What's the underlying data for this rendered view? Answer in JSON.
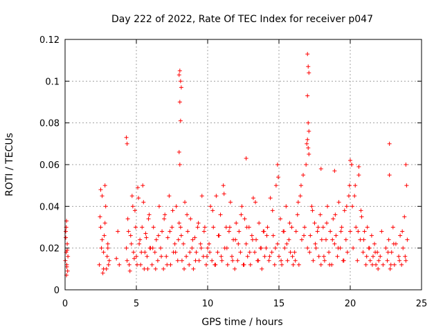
{
  "chart_data": {
    "type": "scatter",
    "title": "Day 222 of 2022, Rate Of TEC Index for receiver p047",
    "xlabel": "GPS time / hours",
    "ylabel": "ROTI / TECUs",
    "xlim": [
      0,
      25
    ],
    "ylim": [
      0,
      0.12
    ],
    "xticks": [
      "0",
      "5",
      "10",
      "15",
      "20",
      "25"
    ],
    "yticks": [
      "0",
      "0.02",
      "0.04",
      "0.06",
      "0.08",
      "0.1",
      "0.12"
    ],
    "xtick_values": [
      0,
      5,
      10,
      15,
      20,
      25
    ],
    "ytick_values": [
      0,
      0.02,
      0.04,
      0.06,
      0.08,
      0.1,
      0.12
    ],
    "grid": true,
    "marker": "plus",
    "color": "#ff0000",
    "series": [
      {
        "x": [
          0.02,
          0.05,
          0.08,
          0.1,
          0.12,
          0.15,
          0.18,
          0.2,
          0.05,
          0.1,
          0.15,
          0.08,
          0.12,
          2.4,
          2.5,
          2.6,
          2.7,
          2.8,
          2.9,
          3.0,
          3.1,
          2.45,
          2.55,
          2.65,
          2.75,
          2.85,
          2.95,
          3.05,
          2.5,
          2.6,
          2.7,
          2.8,
          3.0,
          3.6,
          3.7,
          3.8,
          4.3,
          4.4,
          4.5,
          4.6,
          4.7,
          4.8,
          4.9,
          5.0,
          5.1,
          5.2,
          5.3,
          5.4,
          5.5,
          5.6,
          5.7,
          5.8,
          5.9,
          6.0,
          4.35,
          4.45,
          4.55,
          4.65,
          4.75,
          4.85,
          4.95,
          5.05,
          5.15,
          5.25,
          5.35,
          5.45,
          5.55,
          5.65,
          5.75,
          5.85,
          5.95,
          6.1,
          6.2,
          6.3,
          6.4,
          6.5,
          6.6,
          6.7,
          6.8,
          6.9,
          7.0,
          7.1,
          7.2,
          7.3,
          7.4,
          7.5,
          7.6,
          7.7,
          7.8,
          7.9,
          8.0,
          6.15,
          6.35,
          6.55,
          6.75,
          6.95,
          7.15,
          7.35,
          7.55,
          7.75,
          7.95,
          8.1,
          8.2,
          8.3,
          8.4,
          8.5,
          8.6,
          8.7,
          8.8,
          8.9,
          9.0,
          9.1,
          9.2,
          9.3,
          9.4,
          9.5,
          9.6,
          9.7,
          9.8,
          9.9,
          10.0,
          8.15,
          8.35,
          8.55,
          8.75,
          8.95,
          9.15,
          9.35,
          9.55,
          9.75,
          9.95,
          10.1,
          10.2,
          10.3,
          10.4,
          10.5,
          10.6,
          10.7,
          10.8,
          10.9,
          11.0,
          11.1,
          11.2,
          11.3,
          11.4,
          11.5,
          11.6,
          11.7,
          11.8,
          11.9,
          12.0,
          10.15,
          10.35,
          10.55,
          10.75,
          10.95,
          11.15,
          11.35,
          11.55,
          11.75,
          11.95,
          12.1,
          12.2,
          12.3,
          12.4,
          12.5,
          12.6,
          12.7,
          12.8,
          12.9,
          13.0,
          13.1,
          13.2,
          13.3,
          13.4,
          13.5,
          13.6,
          13.7,
          13.8,
          13.9,
          14.0,
          12.15,
          12.35,
          12.55,
          12.75,
          12.95,
          13.15,
          13.35,
          13.55,
          13.75,
          13.95,
          14.1,
          14.2,
          14.3,
          14.4,
          14.5,
          14.6,
          14.7,
          14.8,
          14.9,
          15.0,
          15.1,
          15.2,
          15.3,
          15.4,
          15.5,
          15.6,
          15.7,
          15.8,
          15.9,
          16.0,
          14.15,
          14.35,
          14.55,
          14.75,
          14.95,
          15.15,
          15.35,
          15.55,
          15.75,
          15.95,
          16.1,
          16.2,
          16.3,
          16.4,
          16.5,
          16.6,
          16.7,
          16.8,
          16.9,
          17.0,
          17.1,
          17.2,
          17.3,
          17.4,
          17.5,
          17.6,
          17.7,
          17.8,
          17.9,
          18.0,
          16.15,
          16.35,
          16.55,
          16.75,
          16.95,
          17.15,
          17.35,
          17.55,
          17.75,
          17.95,
          18.1,
          18.2,
          18.3,
          18.4,
          18.5,
          18.6,
          18.7,
          18.8,
          18.9,
          19.0,
          19.1,
          19.2,
          19.3,
          19.4,
          19.5,
          19.6,
          19.7,
          19.8,
          19.9,
          20.0,
          18.15,
          18.35,
          18.55,
          18.75,
          18.95,
          19.15,
          19.35,
          19.55,
          19.75,
          19.95,
          20.1,
          20.2,
          20.3,
          20.4,
          20.5,
          20.6,
          20.7,
          20.8,
          20.9,
          21.0,
          21.1,
          21.2,
          21.3,
          21.4,
          21.5,
          21.6,
          21.7,
          21.8,
          21.9,
          22.0,
          20.15,
          20.35,
          20.55,
          20.75,
          20.95,
          21.15,
          21.35,
          21.55,
          21.75,
          21.95,
          22.1,
          22.2,
          22.3,
          22.5,
          22.6,
          22.7,
          22.8,
          22.9,
          23.0,
          23.1,
          23.2,
          23.4,
          23.5,
          23.6,
          23.7,
          23.8,
          23.9,
          24.0,
          22.65,
          22.85,
          23.05,
          23.45,
          23.65,
          23.85,
          4.3,
          4.35,
          8.0,
          8.05,
          8.1,
          8.15,
          8.05,
          8.1,
          8.0,
          8.05,
          17.0,
          17.05,
          17.1,
          17.0,
          17.05,
          17.1,
          17.0,
          17.05,
          22.75,
          12.7,
          14.9,
          17.95,
          18.9,
          20.0,
          20.1,
          20.6,
          22.75,
          23.9,
          23.95
        ],
        "y": [
          0.014,
          0.028,
          0.018,
          0.033,
          0.012,
          0.022,
          0.009,
          0.016,
          0.025,
          0.007,
          0.019,
          0.03,
          0.011,
          0.012,
          0.03,
          0.045,
          0.018,
          0.05,
          0.01,
          0.022,
          0.014,
          0.035,
          0.02,
          0.008,
          0.026,
          0.04,
          0.016,
          0.012,
          0.048,
          0.024,
          0.01,
          0.032,
          0.02,
          0.015,
          0.028,
          0.012,
          0.02,
          0.034,
          0.012,
          0.026,
          0.045,
          0.018,
          0.038,
          0.016,
          0.049,
          0.022,
          0.012,
          0.03,
          0.042,
          0.018,
          0.025,
          0.01,
          0.036,
          0.02,
          0.014,
          0.028,
          0.009,
          0.022,
          0.04,
          0.015,
          0.03,
          0.012,
          0.044,
          0.024,
          0.018,
          0.05,
          0.01,
          0.027,
          0.016,
          0.034,
          0.02,
          0.012,
          0.03,
          0.018,
          0.024,
          0.014,
          0.04,
          0.02,
          0.028,
          0.01,
          0.036,
          0.016,
          0.025,
          0.045,
          0.012,
          0.03,
          0.018,
          0.022,
          0.04,
          0.014,
          0.032,
          0.02,
          0.01,
          0.026,
          0.016,
          0.034,
          0.012,
          0.028,
          0.038,
          0.018,
          0.024,
          0.03,
          0.014,
          0.022,
          0.042,
          0.016,
          0.028,
          0.012,
          0.034,
          0.02,
          0.01,
          0.025,
          0.018,
          0.03,
          0.014,
          0.022,
          0.045,
          0.016,
          0.03,
          0.012,
          0.02,
          0.026,
          0.01,
          0.036,
          0.018,
          0.024,
          0.014,
          0.032,
          0.02,
          0.028,
          0.016,
          0.022,
          0.04,
          0.014,
          0.03,
          0.012,
          0.045,
          0.018,
          0.026,
          0.036,
          0.014,
          0.05,
          0.02,
          0.03,
          0.012,
          0.028,
          0.042,
          0.016,
          0.024,
          0.01,
          0.032,
          0.018,
          0.038,
          0.012,
          0.026,
          0.016,
          0.046,
          0.02,
          0.03,
          0.014,
          0.024,
          0.014,
          0.028,
          0.018,
          0.04,
          0.012,
          0.034,
          0.022,
          0.016,
          0.03,
          0.012,
          0.026,
          0.044,
          0.018,
          0.024,
          0.014,
          0.032,
          0.02,
          0.01,
          0.028,
          0.016,
          0.022,
          0.036,
          0.012,
          0.03,
          0.018,
          0.024,
          0.042,
          0.014,
          0.02,
          0.028,
          0.02,
          0.03,
          0.014,
          0.044,
          0.018,
          0.026,
          0.012,
          0.05,
          0.022,
          0.016,
          0.034,
          0.012,
          0.028,
          0.02,
          0.04,
          0.014,
          0.024,
          0.018,
          0.03,
          0.012,
          0.026,
          0.016,
          0.038,
          0.02,
          0.054,
          0.014,
          0.028,
          0.022,
          0.032,
          0.016,
          0.018,
          0.028,
          0.036,
          0.012,
          0.045,
          0.024,
          0.055,
          0.03,
          0.06,
          0.02,
          0.065,
          0.026,
          0.04,
          0.014,
          0.032,
          0.02,
          0.028,
          0.016,
          0.036,
          0.024,
          0.014,
          0.042,
          0.05,
          0.026,
          0.07,
          0.018,
          0.038,
          0.022,
          0.03,
          0.012,
          0.03,
          0.014,
          0.024,
          0.04,
          0.018,
          0.028,
          0.012,
          0.034,
          0.022,
          0.026,
          0.016,
          0.042,
          0.02,
          0.03,
          0.014,
          0.038,
          0.024,
          0.018,
          0.045,
          0.028,
          0.016,
          0.032,
          0.012,
          0.024,
          0.036,
          0.02,
          0.028,
          0.014,
          0.04,
          0.05,
          0.06,
          0.02,
          0.045,
          0.03,
          0.014,
          0.055,
          0.024,
          0.035,
          0.018,
          0.028,
          0.012,
          0.03,
          0.02,
          0.014,
          0.026,
          0.016,
          0.022,
          0.012,
          0.018,
          0.014,
          0.04,
          0.05,
          0.028,
          0.038,
          0.024,
          0.016,
          0.02,
          0.012,
          0.018,
          0.01,
          0.016,
          0.028,
          0.012,
          0.02,
          0.014,
          0.024,
          0.01,
          0.018,
          0.03,
          0.012,
          0.022,
          0.016,
          0.026,
          0.012,
          0.02,
          0.035,
          0.014,
          0.024,
          0.018,
          0.012,
          0.022,
          0.014,
          0.028,
          0.016,
          0.073,
          0.07,
          0.103,
          0.105,
          0.1,
          0.097,
          0.09,
          0.081,
          0.066,
          0.06,
          0.113,
          0.107,
          0.104,
          0.093,
          0.08,
          0.076,
          0.072,
          0.068,
          0.07,
          0.063,
          0.06,
          0.058,
          0.057,
          0.062,
          0.06,
          0.059,
          0.055,
          0.06,
          0.05
        ]
      }
    ]
  }
}
